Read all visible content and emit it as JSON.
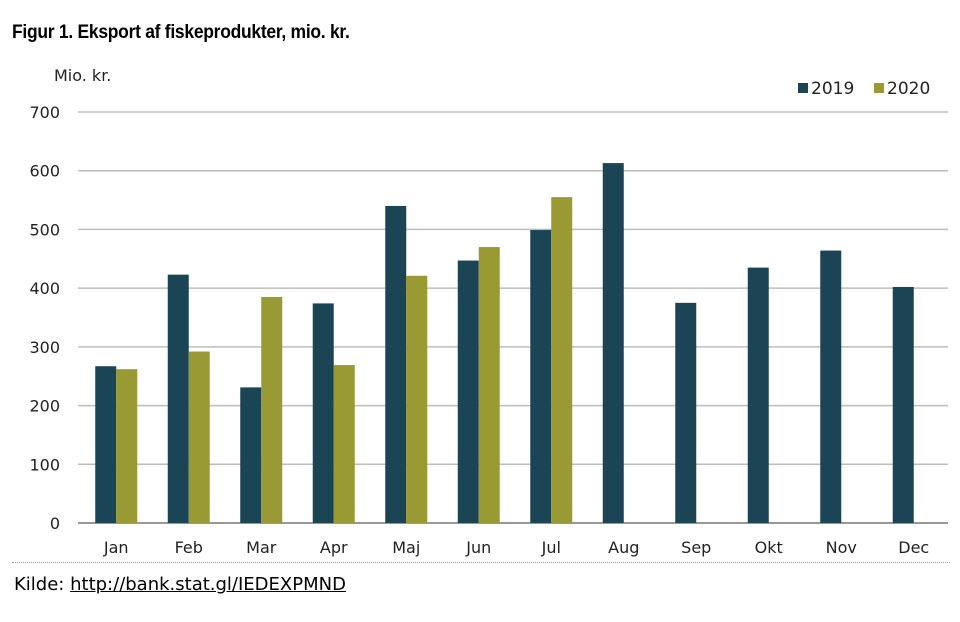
{
  "source": {
    "label": "Kilde:",
    "link_text": "http://bank.stat.gl/IEDEXPMND"
  },
  "colors": {
    "series_2019": "#1b4555",
    "series_2020": "#999a33",
    "grid": "#bdbdbd"
  },
  "chart_data": {
    "type": "bar",
    "title": "Figur 1. Eksport af fiskeprodukter, mio. kr.",
    "ylabel": "Mio. kr.",
    "xlabel": "",
    "categories": [
      "Jan",
      "Feb",
      "Mar",
      "Apr",
      "Maj",
      "Jun",
      "Jul",
      "Aug",
      "Sep",
      "Okt",
      "Nov",
      "Dec"
    ],
    "series": [
      {
        "name": "2019",
        "values": [
          267,
          423,
          231,
          374,
          540,
          447,
          499,
          613,
          375,
          435,
          464,
          402
        ]
      },
      {
        "name": "2020",
        "values": [
          262,
          292,
          385,
          269,
          421,
          470,
          555,
          null,
          null,
          null,
          null,
          null
        ]
      }
    ],
    "ylim": [
      0,
      700
    ],
    "yticks": [
      0,
      100,
      200,
      300,
      400,
      500,
      600,
      700
    ],
    "grid": true,
    "legend_position": "top-right"
  }
}
